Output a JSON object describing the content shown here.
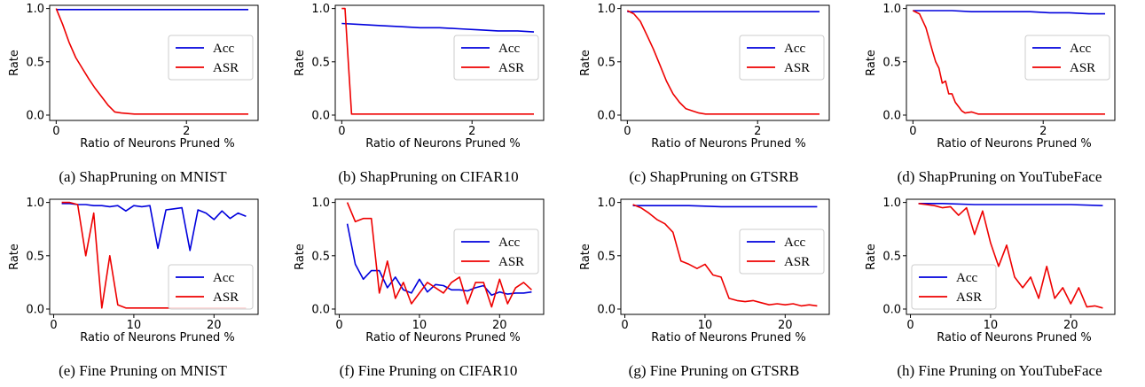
{
  "colors": {
    "acc": "#0000dd",
    "asr": "#ee0000",
    "frame": "#000000"
  },
  "chart_data": [
    {
      "type": "line",
      "caption": "(a) ShapPruning on MNIST",
      "xlabel": "Ratio of Neurons Pruned %",
      "ylabel": "Rate",
      "xlim": [
        -0.1,
        3.1
      ],
      "ylim": [
        -0.05,
        1.03
      ],
      "xticks": [
        0,
        2
      ],
      "yticks": [
        0.0,
        0.5,
        1.0
      ],
      "legend_position": "center-right",
      "series": [
        {
          "name": "Acc",
          "color": "acc",
          "x": [
            0,
            0.5,
            1,
            1.5,
            2,
            2.5,
            2.95
          ],
          "y": [
            0.99,
            0.99,
            0.99,
            0.99,
            0.99,
            0.99,
            0.99
          ]
        },
        {
          "name": "ASR",
          "color": "asr",
          "x": [
            0,
            0.1,
            0.2,
            0.3,
            0.4,
            0.5,
            0.6,
            0.7,
            0.8,
            0.9,
            1.0,
            1.2,
            1.5,
            2.0,
            2.5,
            2.95
          ],
          "y": [
            1.0,
            0.85,
            0.68,
            0.54,
            0.44,
            0.34,
            0.25,
            0.17,
            0.09,
            0.03,
            0.02,
            0.01,
            0.01,
            0.01,
            0.01,
            0.01
          ]
        }
      ]
    },
    {
      "type": "line",
      "caption": "(b) ShapPruning on CIFAR10",
      "xlabel": "Ratio of Neurons Pruned %",
      "ylabel": "Rate",
      "xlim": [
        -0.1,
        3.1
      ],
      "ylim": [
        -0.05,
        1.03
      ],
      "xticks": [
        0,
        2
      ],
      "yticks": [
        0.0,
        0.5,
        1.0
      ],
      "legend_position": "center-right",
      "series": [
        {
          "name": "Acc",
          "color": "acc",
          "x": [
            0,
            0.3,
            0.6,
            0.9,
            1.2,
            1.5,
            1.8,
            2.1,
            2.4,
            2.7,
            2.95
          ],
          "y": [
            0.86,
            0.85,
            0.84,
            0.83,
            0.82,
            0.82,
            0.81,
            0.8,
            0.79,
            0.79,
            0.78
          ]
        },
        {
          "name": "ASR",
          "color": "asr",
          "x": [
            0,
            0.05,
            0.1,
            0.15,
            0.5,
            1.0,
            2.0,
            2.95
          ],
          "y": [
            1.0,
            1.0,
            0.5,
            0.01,
            0.01,
            0.01,
            0.01,
            0.01
          ]
        }
      ]
    },
    {
      "type": "line",
      "caption": "(c) ShapPruning on GTSRB",
      "xlabel": "Ratio of Neurons Pruned %",
      "ylabel": "Rate",
      "xlim": [
        -0.1,
        3.1
      ],
      "ylim": [
        -0.05,
        1.03
      ],
      "xticks": [
        0,
        2
      ],
      "yticks": [
        0.0,
        0.5,
        1.0
      ],
      "legend_position": "center-right",
      "series": [
        {
          "name": "Acc",
          "color": "acc",
          "x": [
            0,
            0.5,
            1,
            1.5,
            2,
            2.5,
            2.95
          ],
          "y": [
            0.97,
            0.97,
            0.97,
            0.97,
            0.97,
            0.97,
            0.97
          ]
        },
        {
          "name": "ASR",
          "color": "asr",
          "x": [
            0,
            0.1,
            0.2,
            0.3,
            0.4,
            0.5,
            0.6,
            0.7,
            0.8,
            0.9,
            1.0,
            1.1,
            1.2,
            1.4,
            1.7,
            2.0,
            2.5,
            2.95
          ],
          "y": [
            0.98,
            0.95,
            0.88,
            0.75,
            0.62,
            0.47,
            0.32,
            0.2,
            0.12,
            0.06,
            0.04,
            0.02,
            0.01,
            0.01,
            0.01,
            0.01,
            0.01,
            0.01
          ]
        }
      ]
    },
    {
      "type": "line",
      "caption": "(d) ShapPruning on YouTubeFace",
      "xlabel": "Ratio of Neurons Pruned %",
      "ylabel": "Rate",
      "xlim": [
        -0.1,
        3.1
      ],
      "ylim": [
        -0.05,
        1.03
      ],
      "xticks": [
        0,
        2
      ],
      "yticks": [
        0.0,
        0.5,
        1.0
      ],
      "legend_position": "center-right",
      "series": [
        {
          "name": "Acc",
          "color": "acc",
          "x": [
            0,
            0.3,
            0.6,
            0.9,
            1.2,
            1.5,
            1.8,
            2.1,
            2.4,
            2.7,
            2.95
          ],
          "y": [
            0.98,
            0.98,
            0.98,
            0.97,
            0.97,
            0.97,
            0.97,
            0.96,
            0.96,
            0.95,
            0.95
          ]
        },
        {
          "name": "ASR",
          "color": "asr",
          "x": [
            0,
            0.1,
            0.2,
            0.3,
            0.35,
            0.4,
            0.45,
            0.5,
            0.55,
            0.6,
            0.65,
            0.7,
            0.75,
            0.8,
            0.9,
            1.0,
            1.2,
            1.5,
            2.0,
            2.5,
            2.95
          ],
          "y": [
            0.98,
            0.95,
            0.82,
            0.6,
            0.5,
            0.44,
            0.3,
            0.32,
            0.2,
            0.2,
            0.12,
            0.08,
            0.04,
            0.02,
            0.03,
            0.01,
            0.01,
            0.01,
            0.01,
            0.01,
            0.01
          ]
        }
      ]
    },
    {
      "type": "line",
      "caption": "(e) Fine Pruning on MNIST",
      "xlabel": "Ratio of Neurons Pruned %",
      "ylabel": "Rate",
      "xlim": [
        -0.5,
        25.5
      ],
      "ylim": [
        -0.05,
        1.03
      ],
      "xticks": [
        0,
        10,
        20
      ],
      "yticks": [
        0.0,
        0.5,
        1.0
      ],
      "legend_position": "bottom-right",
      "series": [
        {
          "name": "Acc",
          "color": "acc",
          "x": [
            1,
            2,
            3,
            4,
            5,
            6,
            7,
            8,
            9,
            10,
            11,
            12,
            13,
            14,
            15,
            16,
            17,
            18,
            19,
            20,
            21,
            22,
            23,
            24
          ],
          "y": [
            0.99,
            0.99,
            0.98,
            0.98,
            0.97,
            0.97,
            0.96,
            0.97,
            0.92,
            0.97,
            0.96,
            0.97,
            0.57,
            0.93,
            0.94,
            0.95,
            0.55,
            0.93,
            0.9,
            0.84,
            0.92,
            0.85,
            0.9,
            0.87
          ]
        },
        {
          "name": "ASR",
          "color": "asr",
          "x": [
            1,
            2,
            3,
            4,
            5,
            6,
            7,
            8,
            9,
            10,
            11,
            12,
            14,
            16,
            18,
            20,
            22,
            24
          ],
          "y": [
            1.0,
            1.0,
            0.98,
            0.5,
            0.9,
            0.01,
            0.5,
            0.04,
            0.01,
            0.01,
            0.01,
            0.01,
            0.01,
            0.01,
            0.01,
            0.01,
            0.01,
            0.01
          ]
        }
      ]
    },
    {
      "type": "line",
      "caption": "(f) Fine Pruning on CIFAR10",
      "xlabel": "Ratio of Neurons Pruned %",
      "ylabel": "Rate",
      "xlim": [
        -0.5,
        25.5
      ],
      "ylim": [
        -0.05,
        1.03
      ],
      "xticks": [
        0,
        10,
        20
      ],
      "yticks": [
        0.0,
        0.5,
        1.0
      ],
      "legend_position": "center-right",
      "series": [
        {
          "name": "Acc",
          "color": "acc",
          "x": [
            1,
            2,
            3,
            4,
            5,
            6,
            7,
            8,
            9,
            10,
            11,
            12,
            13,
            14,
            15,
            16,
            17,
            18,
            19,
            20,
            21,
            22,
            23,
            24
          ],
          "y": [
            0.8,
            0.42,
            0.28,
            0.36,
            0.36,
            0.2,
            0.3,
            0.18,
            0.15,
            0.28,
            0.16,
            0.23,
            0.22,
            0.18,
            0.18,
            0.17,
            0.2,
            0.22,
            0.13,
            0.16,
            0.14,
            0.15,
            0.15,
            0.16
          ]
        },
        {
          "name": "ASR",
          "color": "asr",
          "x": [
            1,
            2,
            3,
            4,
            5,
            6,
            7,
            8,
            9,
            10,
            11,
            12,
            13,
            14,
            15,
            16,
            17,
            18,
            19,
            20,
            21,
            22,
            23,
            24
          ],
          "y": [
            1.0,
            0.82,
            0.85,
            0.85,
            0.15,
            0.45,
            0.1,
            0.25,
            0.05,
            0.15,
            0.25,
            0.2,
            0.15,
            0.25,
            0.3,
            0.05,
            0.25,
            0.25,
            0.02,
            0.28,
            0.05,
            0.2,
            0.25,
            0.18
          ]
        }
      ]
    },
    {
      "type": "line",
      "caption": "(g) Fine Pruning on GTSRB",
      "xlabel": "Ratio of Neurons Pruned %",
      "ylabel": "Rate",
      "xlim": [
        -0.5,
        25.5
      ],
      "ylim": [
        -0.05,
        1.03
      ],
      "xticks": [
        0,
        10,
        20
      ],
      "yticks": [
        0.0,
        0.5,
        1.0
      ],
      "legend_position": "center-right",
      "series": [
        {
          "name": "Acc",
          "color": "acc",
          "x": [
            1,
            4,
            8,
            12,
            16,
            20,
            24
          ],
          "y": [
            0.97,
            0.97,
            0.97,
            0.96,
            0.96,
            0.96,
            0.96
          ]
        },
        {
          "name": "ASR",
          "color": "asr",
          "x": [
            1,
            2,
            3,
            4,
            5,
            6,
            7,
            8,
            9,
            10,
            11,
            12,
            13,
            14,
            15,
            16,
            17,
            18,
            19,
            20,
            21,
            22,
            23,
            24
          ],
          "y": [
            0.98,
            0.95,
            0.9,
            0.84,
            0.8,
            0.72,
            0.45,
            0.42,
            0.38,
            0.42,
            0.32,
            0.3,
            0.1,
            0.08,
            0.07,
            0.08,
            0.06,
            0.04,
            0.05,
            0.04,
            0.05,
            0.03,
            0.04,
            0.03
          ]
        }
      ]
    },
    {
      "type": "line",
      "caption": "(h) Fine Pruning on YouTubeFace",
      "xlabel": "Ratio of Neurons Pruned %",
      "ylabel": "Rate",
      "xlim": [
        -0.5,
        25.5
      ],
      "ylim": [
        -0.05,
        1.03
      ],
      "xticks": [
        0,
        10,
        20
      ],
      "yticks": [
        0.0,
        0.5,
        1.0
      ],
      "legend_position": "bottom-left",
      "series": [
        {
          "name": "Acc",
          "color": "acc",
          "x": [
            1,
            4,
            8,
            12,
            16,
            20,
            24
          ],
          "y": [
            0.99,
            0.99,
            0.98,
            0.98,
            0.98,
            0.98,
            0.97
          ]
        },
        {
          "name": "ASR",
          "color": "asr",
          "x": [
            1,
            2,
            3,
            4,
            5,
            6,
            7,
            8,
            9,
            10,
            11,
            12,
            13,
            14,
            15,
            16,
            17,
            18,
            19,
            20,
            21,
            22,
            23,
            24
          ],
          "y": [
            0.99,
            0.98,
            0.97,
            0.95,
            0.96,
            0.88,
            0.95,
            0.7,
            0.92,
            0.62,
            0.4,
            0.6,
            0.3,
            0.2,
            0.3,
            0.1,
            0.4,
            0.1,
            0.2,
            0.05,
            0.2,
            0.02,
            0.03,
            0.01
          ]
        }
      ]
    }
  ]
}
